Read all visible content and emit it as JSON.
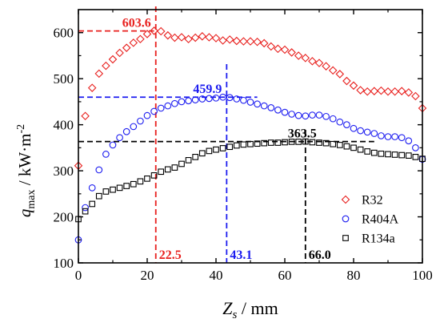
{
  "chart_data": {
    "type": "scatter",
    "xlabel": {
      "main": "Z",
      "sub": "s",
      "unit": " / mm"
    },
    "ylabel": {
      "main": "q",
      "sub": "max",
      "unit": " / kW·m",
      "sup": "-2"
    },
    "xlim": [
      0,
      100
    ],
    "ylim": [
      100,
      650
    ],
    "xticks": [
      "0",
      "20",
      "40",
      "60",
      "80",
      "100"
    ],
    "yticks": [
      "100",
      "200",
      "300",
      "400",
      "500",
      "600"
    ],
    "legend_position": "bottom-right",
    "series": [
      {
        "name": "R32",
        "marker": "diamond",
        "color": "#e8201e",
        "x": [
          0,
          2,
          4,
          6,
          8,
          10,
          12,
          14,
          16,
          18,
          20,
          22,
          24,
          26,
          28,
          30,
          32,
          34,
          36,
          38,
          40,
          42,
          44,
          46,
          48,
          50,
          52,
          54,
          56,
          58,
          60,
          62,
          64,
          66,
          68,
          70,
          72,
          74,
          76,
          78,
          80,
          82,
          84,
          86,
          88,
          90,
          92,
          94,
          96,
          98,
          100
        ],
        "y": [
          311,
          419,
          480,
          511,
          528,
          542,
          556,
          567,
          578,
          586,
          597,
          604,
          603,
          594,
          589,
          590,
          586,
          589,
          592,
          590,
          588,
          583,
          585,
          582,
          581,
          581,
          580,
          577,
          570,
          565,
          563,
          557,
          550,
          545,
          538,
          534,
          527,
          518,
          510,
          495,
          485,
          475,
          472,
          473,
          474,
          472,
          472,
          473,
          470,
          462,
          436
        ]
      },
      {
        "name": "R404A",
        "marker": "circle",
        "color": "#1c1cf0",
        "x": [
          0,
          2,
          4,
          6,
          8,
          10,
          12,
          14,
          16,
          18,
          20,
          22,
          24,
          26,
          28,
          30,
          32,
          34,
          36,
          38,
          40,
          42,
          44,
          46,
          48,
          50,
          52,
          54,
          56,
          58,
          60,
          62,
          64,
          66,
          68,
          70,
          72,
          74,
          76,
          78,
          80,
          82,
          84,
          86,
          88,
          90,
          92,
          94,
          96,
          98,
          100
        ],
        "y": [
          150,
          220,
          263,
          302,
          336,
          356,
          372,
          385,
          396,
          408,
          420,
          429,
          436,
          441,
          446,
          450,
          452,
          454,
          456,
          457,
          458,
          459.9,
          459,
          456,
          453,
          449,
          445,
          441,
          437,
          432,
          427,
          423,
          420,
          419,
          421,
          421,
          418,
          413,
          406,
          400,
          392,
          387,
          384,
          381,
          376,
          374,
          374,
          372,
          365,
          350,
          325
        ]
      },
      {
        "name": "R134a",
        "marker": "square",
        "color": "#000000",
        "x": [
          0,
          2,
          4,
          6,
          8,
          10,
          12,
          14,
          16,
          18,
          20,
          22,
          24,
          26,
          28,
          30,
          32,
          34,
          36,
          38,
          40,
          42,
          44,
          46,
          48,
          50,
          52,
          54,
          56,
          58,
          60,
          62,
          64,
          66,
          68,
          70,
          72,
          74,
          76,
          78,
          80,
          82,
          84,
          86,
          88,
          90,
          92,
          94,
          96,
          98,
          100
        ],
        "y": [
          195,
          212,
          228,
          245,
          255,
          259,
          263,
          267,
          271,
          277,
          283,
          290,
          298,
          303,
          307,
          315,
          323,
          330,
          338,
          343,
          346,
          349,
          352,
          355,
          357,
          358,
          359,
          360,
          361,
          361,
          362,
          363,
          363,
          363.5,
          362,
          361,
          360,
          358,
          356,
          353,
          350,
          346,
          342,
          339,
          337,
          336,
          335,
          334,
          333,
          330,
          326
        ]
      }
    ],
    "annotations": [
      {
        "series": "R32",
        "x": 22.5,
        "y": 603.6,
        "x_label": "22.5",
        "y_label": "603.6",
        "color": "#e8201e"
      },
      {
        "series": "R404A",
        "x": 43.1,
        "y": 459.9,
        "x_label": "43.1",
        "y_label": "459.9",
        "color": "#1c1cf0"
      },
      {
        "series": "R134a",
        "x": 66.0,
        "y": 363.5,
        "x_label": "66.0",
        "y_label": "363.5",
        "color": "#000000"
      }
    ]
  }
}
